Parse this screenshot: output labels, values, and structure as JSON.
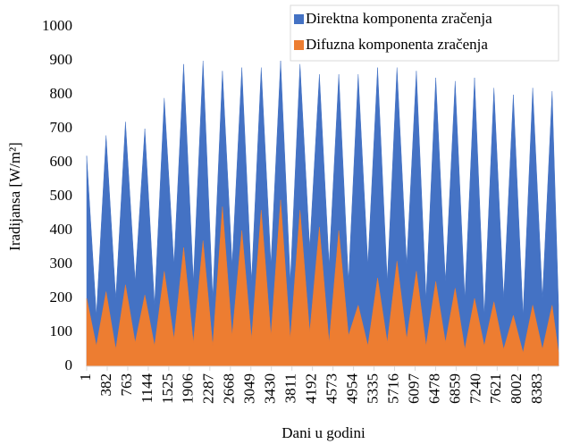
{
  "chart_data": {
    "type": "area",
    "xlabel": "Dani u godini",
    "ylabel": "Iradijansa [W/m²]",
    "x": [
      1,
      181,
      361,
      541,
      721,
      901,
      1081,
      1261,
      1441,
      1621,
      1801,
      1981,
      2161,
      2341,
      2521,
      2701,
      2881,
      3061,
      3241,
      3421,
      3601,
      3781,
      3961,
      4141,
      4321,
      4501,
      4681,
      4861,
      5041,
      5221,
      5401,
      5581,
      5761,
      5941,
      6121,
      6301,
      6481,
      6661,
      6841,
      7021,
      7201,
      7381,
      7561,
      7741,
      7921,
      8101,
      8281,
      8461,
      8641,
      8760
    ],
    "series": [
      {
        "name": "Direktna komponenta zračenja",
        "color": "#4472c4",
        "values": [
          620,
          150,
          680,
          200,
          720,
          250,
          700,
          180,
          790,
          300,
          890,
          250,
          900,
          200,
          870,
          300,
          880,
          250,
          880,
          300,
          900,
          250,
          890,
          350,
          860,
          300,
          860,
          250,
          860,
          300,
          880,
          250,
          880,
          300,
          870,
          200,
          850,
          250,
          840,
          200,
          850,
          150,
          820,
          200,
          800,
          150,
          820,
          200,
          810,
          180
        ]
      },
      {
        "name": "Difuzna komponenta zračenja",
        "color": "#ed7d31",
        "values": [
          200,
          60,
          220,
          50,
          240,
          70,
          210,
          60,
          280,
          80,
          350,
          70,
          370,
          60,
          470,
          90,
          400,
          80,
          460,
          90,
          490,
          80,
          460,
          100,
          410,
          70,
          400,
          90,
          180,
          60,
          260,
          70,
          310,
          80,
          280,
          60,
          250,
          70,
          230,
          50,
          200,
          60,
          190,
          50,
          150,
          40,
          180,
          50,
          180,
          40
        ]
      }
    ],
    "xlim": [
      1,
      8760
    ],
    "xticks": [
      1,
      382,
      763,
      1144,
      1525,
      1906,
      2287,
      2668,
      3049,
      3430,
      3811,
      4192,
      4573,
      4954,
      5335,
      5716,
      6097,
      6478,
      6859,
      7240,
      7621,
      8002,
      8383
    ],
    "ylim": [
      0,
      1000
    ],
    "yticks": [
      0,
      100,
      200,
      300,
      400,
      500,
      600,
      700,
      800,
      900,
      1000
    ],
    "legend": "top-right"
  }
}
